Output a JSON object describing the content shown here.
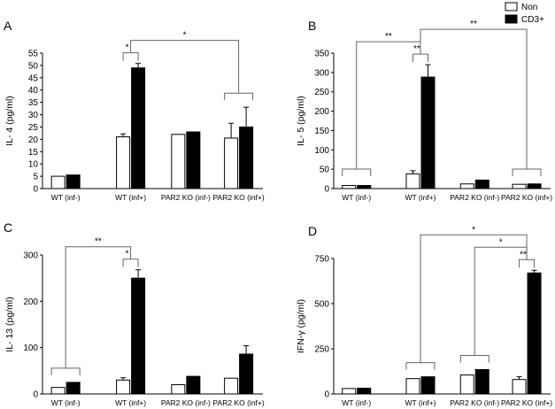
{
  "legend": [
    {
      "name": "Non",
      "color": "#ffffff"
    },
    {
      "name": "CD3+",
      "color": "#000000"
    }
  ],
  "chart_data": [
    {
      "type": "bar",
      "panel": "A",
      "ylabel": "IL- 4 (pg/ml)",
      "ylim": [
        0,
        55
      ],
      "yticks": [
        0,
        5,
        10,
        15,
        20,
        25,
        30,
        35,
        40,
        45,
        50,
        55
      ],
      "categories": [
        "WT (inf-)",
        "WT (inf+)",
        "PAR2 KO (inf-)",
        "PAR2 KO (inf+)"
      ],
      "series": [
        {
          "name": "Non",
          "values": [
            5,
            21,
            22,
            20.5
          ],
          "errors": [
            0,
            1.2,
            0,
            6
          ]
        },
        {
          "name": "CD3+",
          "values": [
            5.5,
            49,
            23,
            25
          ],
          "errors": [
            0,
            1.8,
            0,
            8
          ]
        }
      ],
      "significance": [
        {
          "label": "*",
          "type": "pair",
          "cat": 1
        },
        {
          "label": "*",
          "type": "span",
          "from": 1,
          "to": 3,
          "to_pair": true
        }
      ]
    },
    {
      "type": "bar",
      "panel": "B",
      "ylabel": "IL- 5 (pg/ml)",
      "ylim": [
        0,
        350
      ],
      "yticks": [
        0,
        50,
        100,
        150,
        200,
        250,
        300,
        350
      ],
      "categories": [
        "WT (inf-)",
        "WT (inf+)",
        "PAR2 KO (inf-)",
        "PAR2 KO (inf+)"
      ],
      "series": [
        {
          "name": "Non",
          "values": [
            8,
            38,
            12,
            11
          ],
          "errors": [
            0,
            8,
            0,
            0
          ]
        },
        {
          "name": "CD3+",
          "values": [
            8,
            288,
            22,
            12
          ],
          "errors": [
            0,
            32,
            0,
            0
          ]
        }
      ],
      "significance": [
        {
          "label": "**",
          "type": "pair",
          "cat": 1
        },
        {
          "label": "**",
          "type": "span",
          "from": 0,
          "to": 1
        },
        {
          "label": "**",
          "type": "span",
          "from": 1,
          "to": 3
        }
      ]
    },
    {
      "type": "bar",
      "panel": "C",
      "ylabel": "IL- 13 (pg/ml)",
      "ylim": [
        0,
        300
      ],
      "yticks": [
        0,
        100,
        200,
        300
      ],
      "categories": [
        "WT (inf-)",
        "WT (inf+)",
        "PAR2 KO (inf-)",
        "PAR2 KO (inf+)"
      ],
      "series": [
        {
          "name": "Non",
          "values": [
            14,
            30,
            20,
            34
          ],
          "errors": [
            0,
            5,
            0,
            0
          ]
        },
        {
          "name": "CD3+",
          "values": [
            25,
            250,
            38,
            86
          ],
          "errors": [
            0,
            18,
            0,
            18
          ]
        }
      ],
      "significance": [
        {
          "label": "*",
          "type": "pair",
          "cat": 1
        },
        {
          "label": "**",
          "type": "span",
          "from": 0,
          "to": 1
        }
      ]
    },
    {
      "type": "bar",
      "panel": "D",
      "ylabel": "IFN-γ (pg/ml)",
      "ylim": [
        0,
        750
      ],
      "yticks": [
        0,
        250,
        500,
        750
      ],
      "categories": [
        "WT (inf-)",
        "WT (inf+)",
        "PAR2 KO (inf-)",
        "PAR2 KO (inf+)"
      ],
      "series": [
        {
          "name": "Non",
          "values": [
            30,
            85,
            105,
            80
          ],
          "errors": [
            0,
            0,
            0,
            15
          ]
        },
        {
          "name": "CD3+",
          "values": [
            32,
            95,
            135,
            670
          ],
          "errors": [
            0,
            0,
            0,
            15
          ]
        }
      ],
      "significance": [
        {
          "label": "**",
          "type": "pair",
          "cat": 3
        },
        {
          "label": "*",
          "type": "span",
          "from": 2,
          "to": 3
        },
        {
          "label": "*",
          "type": "span",
          "from": 1,
          "to": 3
        }
      ]
    }
  ]
}
